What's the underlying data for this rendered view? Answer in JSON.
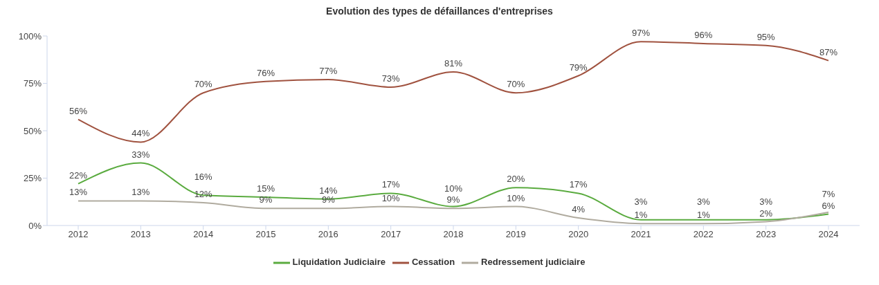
{
  "chart_data": {
    "type": "line",
    "title": "Evolution des types de défaillances d'entreprises",
    "categories": [
      "2012",
      "2013",
      "2014",
      "2015",
      "2016",
      "2017",
      "2018",
      "2019",
      "2020",
      "2021",
      "2022",
      "2023",
      "2024"
    ],
    "series": [
      {
        "name": "Liquidation Judiciaire",
        "color": "#5aab3f",
        "values": [
          22,
          33,
          16,
          15,
          14,
          17,
          10,
          20,
          17,
          3,
          3,
          3,
          6
        ],
        "value_labels": [
          "22%",
          "33%",
          "16%",
          "15%",
          "14%",
          "17%",
          "10%",
          "20%",
          "17%",
          "3%",
          "3%",
          "3%",
          "6%"
        ]
      },
      {
        "name": "Cessation",
        "color": "#a0523f",
        "values": [
          56,
          44,
          70,
          76,
          77,
          73,
          81,
          70,
          79,
          97,
          96,
          95,
          87
        ],
        "value_labels": [
          "56%",
          "44%",
          "70%",
          "76%",
          "77%",
          "73%",
          "81%",
          "70%",
          "79%",
          "97%",
          "96%",
          "95%",
          "87%"
        ]
      },
      {
        "name": "Redressement judiciaire",
        "color": "#b0ab9f",
        "values": [
          13,
          13,
          12,
          9,
          9,
          10,
          9,
          10,
          4,
          1,
          1,
          2,
          7
        ],
        "value_labels": [
          "13%",
          "13%",
          "12%",
          "9%",
          "9%",
          "10%",
          "9%",
          "10%",
          "4%",
          "1%",
          "1%",
          "2%",
          "7%"
        ]
      }
    ],
    "ylim": [
      0,
      100
    ],
    "yticks": [
      {
        "value": 0,
        "label": "0%"
      },
      {
        "value": 25,
        "label": "25%"
      },
      {
        "value": 50,
        "label": "50%"
      },
      {
        "value": 75,
        "label": "75%"
      },
      {
        "value": 100,
        "label": "100%"
      }
    ],
    "grid": false,
    "legend": "bottom",
    "marker": "none",
    "line_style": "solid"
  }
}
